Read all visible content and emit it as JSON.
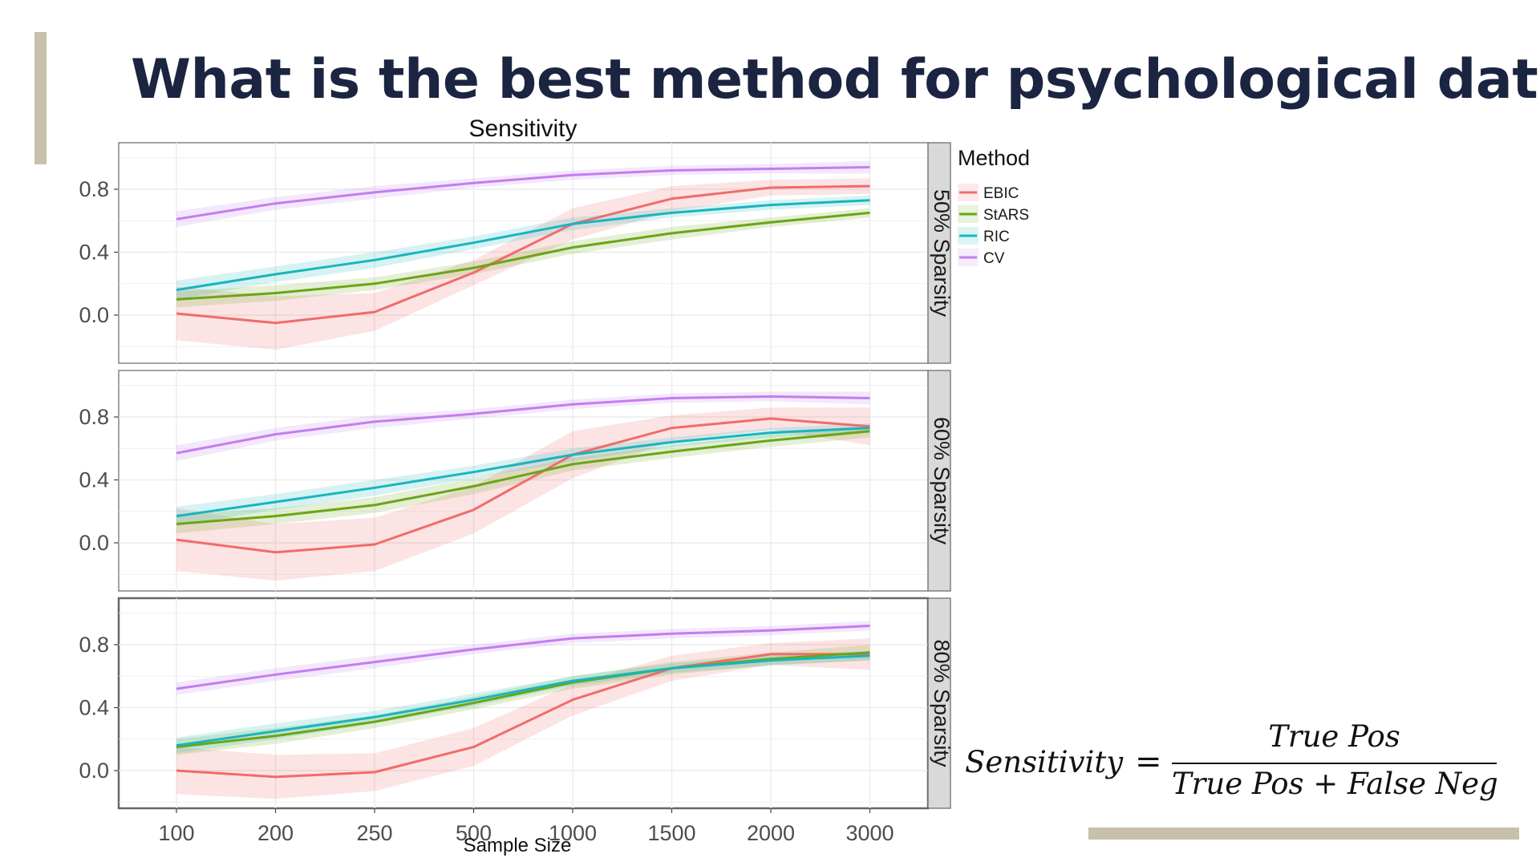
{
  "slide": {
    "title": "What is the best method for psychological data?"
  },
  "formula": {
    "lhs": "Sensitivity",
    "equals": "=",
    "numerator": "True Pos",
    "denominator": "True Pos + False Neg"
  },
  "colors": {
    "accent": "#c8c0a8",
    "title_text": "#1b2440",
    "EBIC": "#f16b6b",
    "StARS": "#6aa517",
    "RIC": "#19b5bd",
    "CV": "#c47df0",
    "strip_bg": "#d9d9d9",
    "grid": "#ebebeb"
  },
  "chart_data": {
    "type": "line",
    "title": "Sensitivity",
    "xlabel": "Sample Size",
    "ylabel": "",
    "categories": [
      "100",
      "200",
      "250",
      "500",
      "1000",
      "1500",
      "2000",
      "3000"
    ],
    "yticks": [
      0.0,
      0.4,
      0.8
    ],
    "ylim": [
      -0.15,
      1.0
    ],
    "legend": {
      "title": "Method",
      "position": "top-right",
      "entries": [
        "EBIC",
        "StARS",
        "RIC",
        "CV"
      ]
    },
    "facets": [
      {
        "label": "50% Sparsity",
        "series": [
          {
            "name": "EBIC",
            "values": [
              0.01,
              -0.05,
              0.02,
              0.27,
              0.58,
              0.74,
              0.81,
              0.82
            ],
            "band": [
              0.17,
              0.17,
              0.12,
              0.08,
              0.1,
              0.08,
              0.05,
              0.05
            ]
          },
          {
            "name": "StARS",
            "values": [
              0.1,
              0.14,
              0.2,
              0.3,
              0.43,
              0.52,
              0.59,
              0.65
            ],
            "band": [
              0.05,
              0.05,
              0.04,
              0.04,
              0.04,
              0.04,
              0.03,
              0.03
            ]
          },
          {
            "name": "RIC",
            "values": [
              0.16,
              0.26,
              0.35,
              0.46,
              0.58,
              0.65,
              0.7,
              0.73
            ],
            "band": [
              0.06,
              0.05,
              0.05,
              0.04,
              0.04,
              0.03,
              0.03,
              0.03
            ]
          },
          {
            "name": "CV",
            "values": [
              0.61,
              0.71,
              0.78,
              0.84,
              0.89,
              0.92,
              0.93,
              0.94
            ],
            "band": [
              0.05,
              0.04,
              0.04,
              0.03,
              0.03,
              0.03,
              0.03,
              0.04
            ]
          }
        ]
      },
      {
        "label": "60% Sparsity",
        "series": [
          {
            "name": "EBIC",
            "values": [
              0.02,
              -0.06,
              -0.01,
              0.21,
              0.56,
              0.73,
              0.79,
              0.74
            ],
            "band": [
              0.2,
              0.18,
              0.17,
              0.15,
              0.15,
              0.08,
              0.07,
              0.12
            ]
          },
          {
            "name": "StARS",
            "values": [
              0.12,
              0.17,
              0.24,
              0.36,
              0.5,
              0.58,
              0.65,
              0.71
            ],
            "band": [
              0.06,
              0.05,
              0.05,
              0.05,
              0.04,
              0.04,
              0.04,
              0.04
            ]
          },
          {
            "name": "RIC",
            "values": [
              0.17,
              0.26,
              0.35,
              0.45,
              0.56,
              0.64,
              0.7,
              0.73
            ],
            "band": [
              0.06,
              0.05,
              0.05,
              0.04,
              0.04,
              0.03,
              0.03,
              0.03
            ]
          },
          {
            "name": "CV",
            "values": [
              0.57,
              0.69,
              0.77,
              0.82,
              0.88,
              0.92,
              0.93,
              0.92
            ],
            "band": [
              0.05,
              0.04,
              0.04,
              0.03,
              0.03,
              0.03,
              0.03,
              0.04
            ]
          }
        ]
      },
      {
        "label": "80% Sparsity",
        "series": [
          {
            "name": "EBIC",
            "values": [
              0.0,
              -0.04,
              -0.01,
              0.15,
              0.45,
              0.65,
              0.74,
              0.74
            ],
            "band": [
              0.15,
              0.14,
              0.12,
              0.12,
              0.1,
              0.08,
              0.07,
              0.1
            ]
          },
          {
            "name": "StARS",
            "values": [
              0.15,
              0.22,
              0.31,
              0.43,
              0.56,
              0.65,
              0.71,
              0.75
            ],
            "band": [
              0.05,
              0.05,
              0.04,
              0.04,
              0.04,
              0.04,
              0.04,
              0.05
            ]
          },
          {
            "name": "RIC",
            "values": [
              0.16,
              0.25,
              0.34,
              0.45,
              0.57,
              0.65,
              0.7,
              0.73
            ],
            "band": [
              0.05,
              0.05,
              0.04,
              0.04,
              0.03,
              0.03,
              0.03,
              0.03
            ]
          },
          {
            "name": "CV",
            "values": [
              0.52,
              0.61,
              0.69,
              0.77,
              0.84,
              0.87,
              0.89,
              0.92
            ],
            "band": [
              0.04,
              0.04,
              0.04,
              0.03,
              0.03,
              0.03,
              0.03,
              0.03
            ]
          }
        ]
      }
    ]
  }
}
